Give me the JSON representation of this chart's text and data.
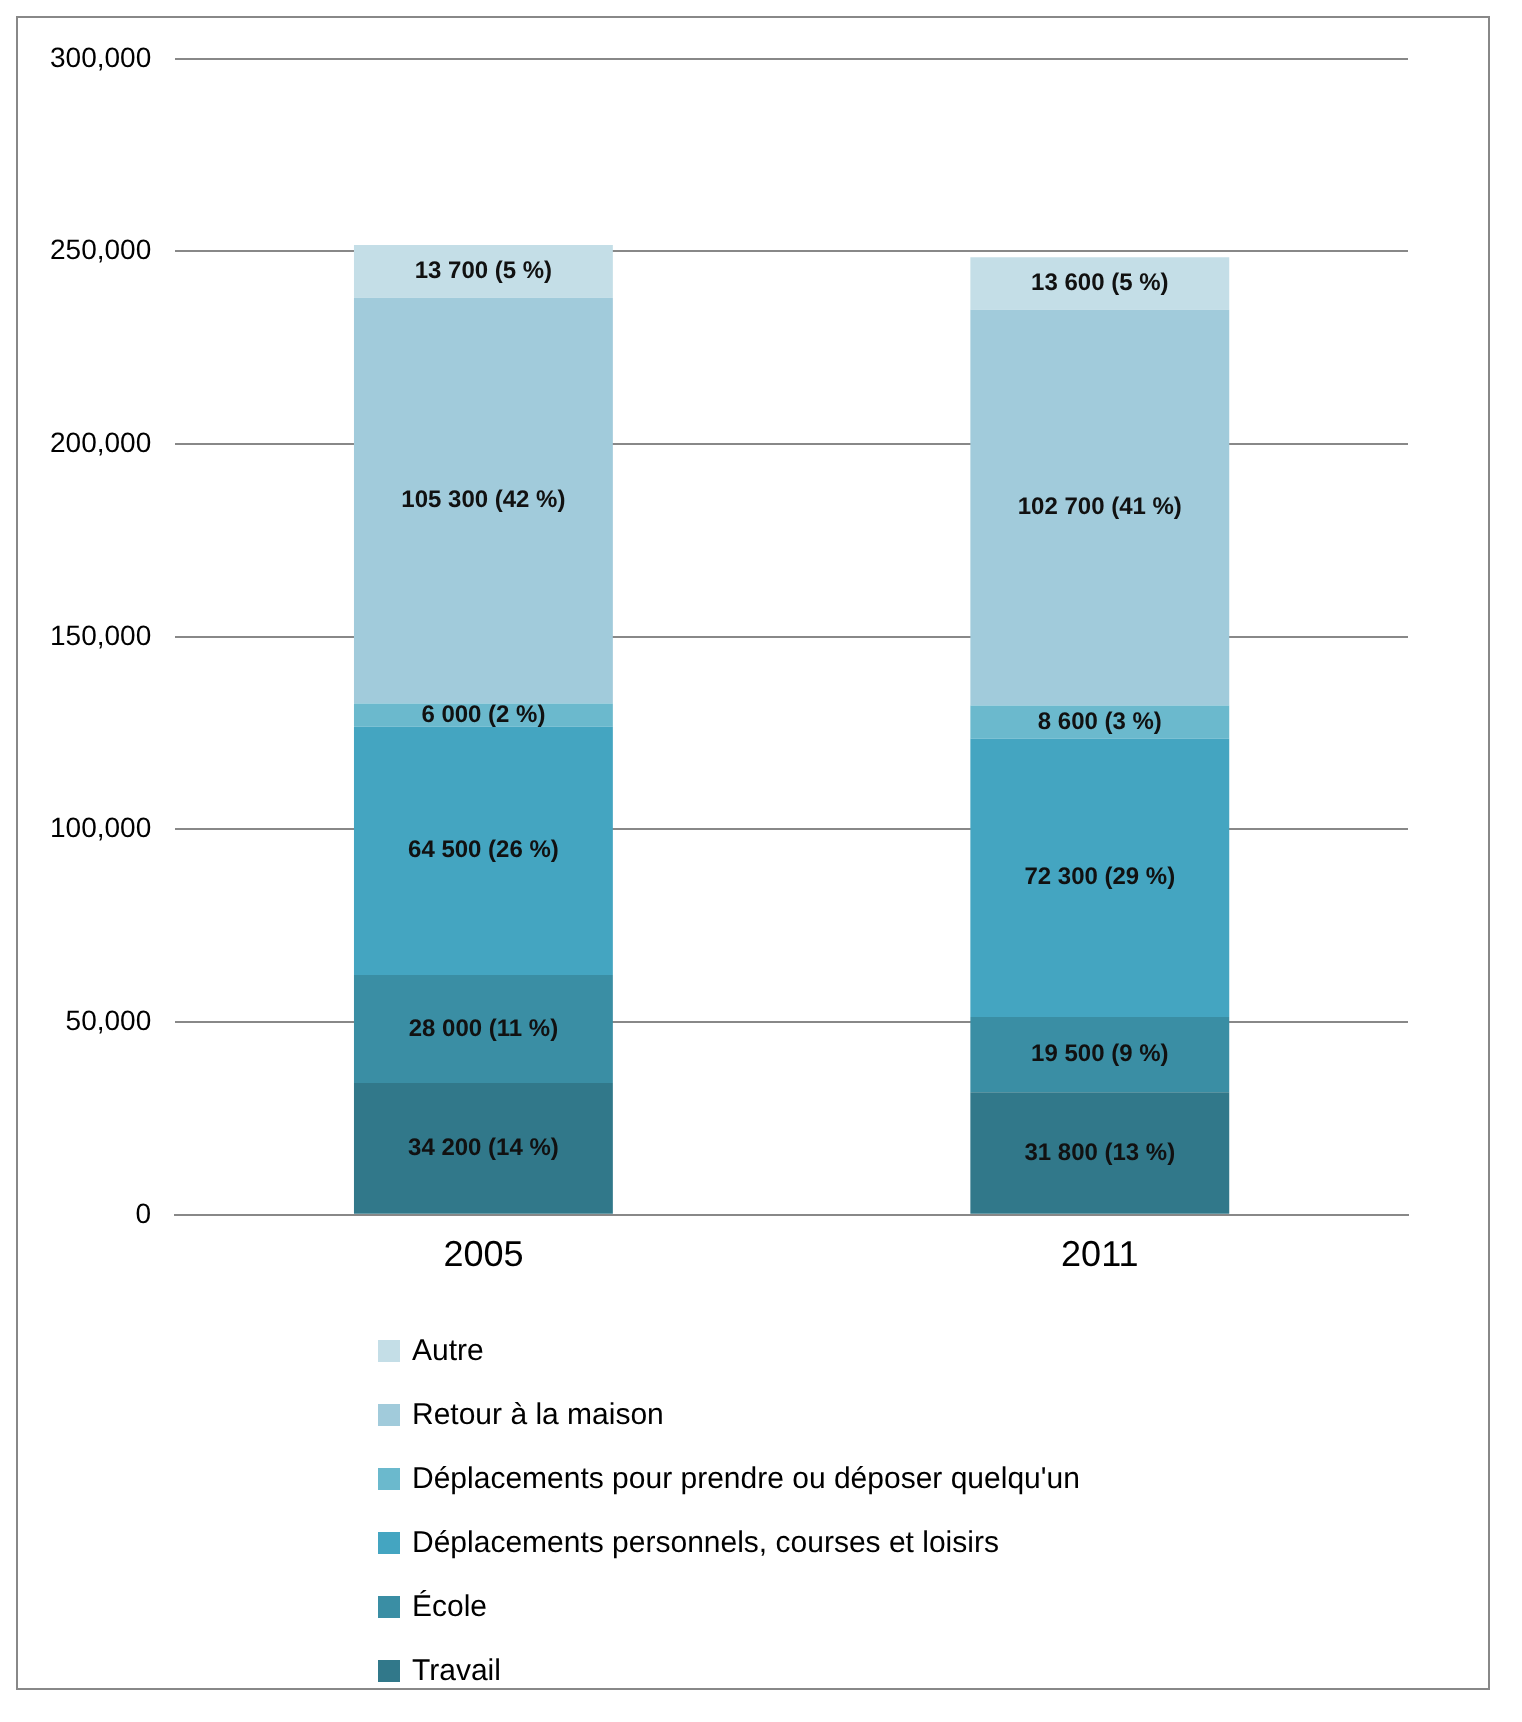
{
  "chart_data": {
    "type": "bar",
    "stacked": true,
    "categories": [
      "2005",
      "2011"
    ],
    "series": [
      {
        "name": "Travail",
        "color": "#31788a",
        "values": [
          34200,
          31800
        ],
        "value_labels": [
          "34 200 (14 %)",
          "31 800 (13 %)"
        ]
      },
      {
        "name": "École",
        "color": "#3a8ea4",
        "values": [
          28000,
          19500
        ],
        "value_labels": [
          "28 000 (11 %)",
          "19 500 (9 %)"
        ]
      },
      {
        "name": "Déplacements personnels, courses et loisirs",
        "color": "#44a5c1",
        "values": [
          64500,
          72300
        ],
        "value_labels": [
          "64 500 (26 %)",
          "72 300 (29 %)"
        ]
      },
      {
        "name": "Déplacements pour prendre ou déposer quelqu'un",
        "color": "#6bb9cd",
        "values": [
          6000,
          8600
        ],
        "value_labels": [
          "6 000 (2 %)",
          "8 600 (3 %)"
        ]
      },
      {
        "name": "Retour à la maison",
        "color": "#a1cbdb",
        "values": [
          105300,
          102700
        ],
        "value_labels": [
          "105 300 (42 %)",
          "102 700 (41 %)"
        ]
      },
      {
        "name": "Autre",
        "color": "#c4dee7",
        "values": [
          13700,
          13600
        ],
        "value_labels": [
          "13 700 (5 %)",
          "13 600 (5 %)"
        ]
      }
    ],
    "ylim": [
      0,
      300000
    ],
    "yticks": [
      {
        "value": 0,
        "label": "0"
      },
      {
        "value": 50000,
        "label": "50,000"
      },
      {
        "value": 100000,
        "label": "100,000"
      },
      {
        "value": 150000,
        "label": "150,000"
      },
      {
        "value": 200000,
        "label": "200,000"
      },
      {
        "value": 250000,
        "label": "250,000"
      },
      {
        "value": 300000,
        "label": "300,000"
      }
    ],
    "grid": "y",
    "legend": "bottom"
  }
}
